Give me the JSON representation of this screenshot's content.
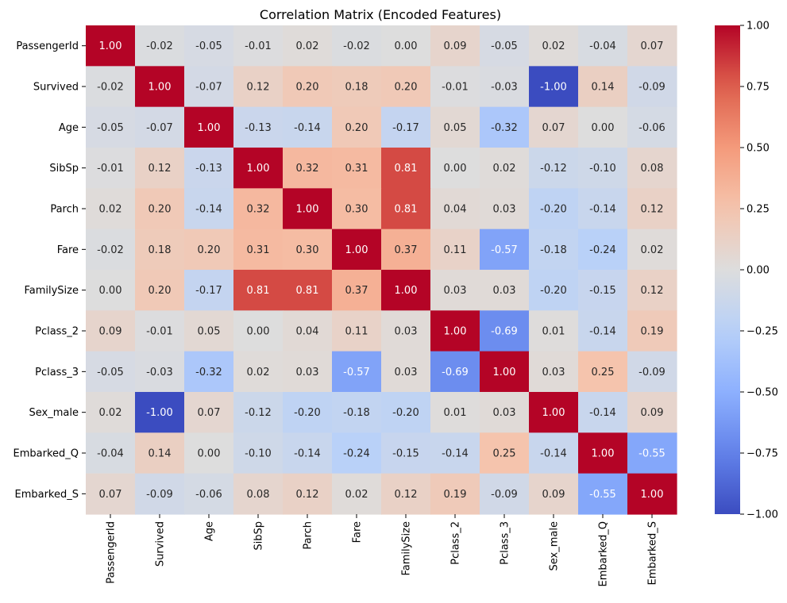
{
  "chart_data": {
    "type": "heatmap",
    "title": "Correlation Matrix (Encoded Features)",
    "xlabel": "",
    "ylabel": "",
    "labels": [
      "PassengerId",
      "Survived",
      "Age",
      "SibSp",
      "Parch",
      "Fare",
      "FamilySize",
      "Pclass_2",
      "Pclass_3",
      "Sex_male",
      "Embarked_Q",
      "Embarked_S"
    ],
    "matrix": [
      [
        1.0,
        -0.02,
        -0.05,
        -0.01,
        0.02,
        -0.02,
        0.0,
        0.09,
        -0.05,
        0.02,
        -0.04,
        0.07
      ],
      [
        -0.02,
        1.0,
        -0.07,
        0.12,
        0.2,
        0.18,
        0.2,
        -0.01,
        -0.03,
        -1.0,
        0.14,
        -0.09
      ],
      [
        -0.05,
        -0.07,
        1.0,
        -0.13,
        -0.14,
        0.2,
        -0.17,
        0.05,
        -0.32,
        0.07,
        0.0,
        -0.06
      ],
      [
        -0.01,
        0.12,
        -0.13,
        1.0,
        0.32,
        0.31,
        0.81,
        0.0,
        0.02,
        -0.12,
        -0.1,
        0.08
      ],
      [
        0.02,
        0.2,
        -0.14,
        0.32,
        1.0,
        0.3,
        0.81,
        0.04,
        0.03,
        -0.2,
        -0.14,
        0.12
      ],
      [
        -0.02,
        0.18,
        0.2,
        0.31,
        0.3,
        1.0,
        0.37,
        0.11,
        -0.57,
        -0.18,
        -0.24,
        0.02
      ],
      [
        0.0,
        0.2,
        -0.17,
        0.81,
        0.81,
        0.37,
        1.0,
        0.03,
        0.03,
        -0.2,
        -0.15,
        0.12
      ],
      [
        0.09,
        -0.01,
        0.05,
        0.0,
        0.04,
        0.11,
        0.03,
        1.0,
        -0.69,
        0.01,
        -0.14,
        0.19
      ],
      [
        -0.05,
        -0.03,
        -0.32,
        0.02,
        0.03,
        -0.57,
        0.03,
        -0.69,
        1.0,
        0.03,
        0.25,
        -0.09
      ],
      [
        0.02,
        -1.0,
        0.07,
        -0.12,
        -0.2,
        -0.18,
        -0.2,
        0.01,
        0.03,
        1.0,
        -0.14,
        0.09
      ],
      [
        -0.04,
        0.14,
        0.0,
        -0.1,
        -0.14,
        -0.24,
        -0.15,
        -0.14,
        0.25,
        -0.14,
        1.0,
        -0.55
      ],
      [
        0.07,
        -0.09,
        -0.06,
        0.08,
        0.12,
        0.02,
        0.12,
        0.19,
        -0.09,
        0.09,
        -0.55,
        1.0
      ]
    ],
    "value_format": "0.00",
    "colormap": "coolwarm",
    "vmin": -1.0,
    "vmax": 1.0,
    "colorbar": {
      "ticks": [
        1.0,
        0.75,
        0.5,
        0.25,
        0.0,
        -0.25,
        -0.5,
        -0.75,
        -1.0
      ],
      "tick_labels": [
        "1.00",
        "0.75",
        "0.50",
        "0.25",
        "0.00",
        "−0.25",
        "−0.50",
        "−0.75",
        "−1.00"
      ],
      "placement": "right"
    },
    "grid": false
  }
}
